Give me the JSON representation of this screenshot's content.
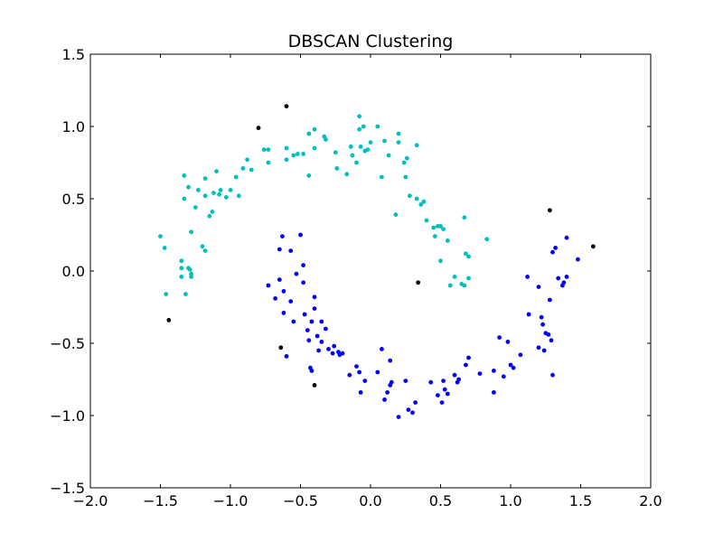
{
  "chart_data": {
    "type": "scatter",
    "title": "DBSCAN Clustering",
    "xlabel": "",
    "ylabel": "",
    "xlim": [
      -2.0,
      2.0
    ],
    "ylim": [
      -1.5,
      1.5
    ],
    "grid": false,
    "legend": "none",
    "x_ticks": [
      "−2.0",
      "−1.5",
      "−1.0",
      "−0.5",
      "0.0",
      "0.5",
      "1.0",
      "1.5",
      "2.0"
    ],
    "x_tick_values": [
      -2.0,
      -1.5,
      -1.0,
      -0.5,
      0.0,
      0.5,
      1.0,
      1.5,
      2.0
    ],
    "y_ticks": [
      "1.5",
      "1.0",
      "0.5",
      "0.0",
      "−0.5",
      "−1.0",
      "−1.5"
    ],
    "y_tick_values": [
      1.5,
      1.0,
      0.5,
      0.0,
      -0.5,
      -1.0,
      -1.5
    ],
    "series": [
      {
        "color": "#00bfbf",
        "points": [
          [
            -1.5,
            0.24
          ],
          [
            -1.47,
            0.16
          ],
          [
            -1.46,
            -0.16
          ],
          [
            -1.35,
            0.07
          ],
          [
            -1.35,
            0.02
          ],
          [
            -1.35,
            -0.04
          ],
          [
            -1.32,
            -0.16
          ],
          [
            -1.3,
            0.02
          ],
          [
            -1.29,
            0.01
          ],
          [
            -1.28,
            -0.02
          ],
          [
            -1.28,
            -0.04
          ],
          [
            -1.33,
            0.66
          ],
          [
            -1.33,
            0.5
          ],
          [
            -1.3,
            0.58
          ],
          [
            -1.28,
            0.27
          ],
          [
            -1.25,
            0.44
          ],
          [
            -1.23,
            0.56
          ],
          [
            -1.2,
            0.17
          ],
          [
            -1.18,
            0.14
          ],
          [
            -1.18,
            0.52
          ],
          [
            -1.18,
            0.64
          ],
          [
            -1.15,
            0.38
          ],
          [
            -1.13,
            0.41
          ],
          [
            -1.12,
            0.54
          ],
          [
            -1.1,
            0.69
          ],
          [
            -1.08,
            0.53
          ],
          [
            -1.07,
            0.56
          ],
          [
            -1.03,
            0.51
          ],
          [
            -1.0,
            0.56
          ],
          [
            -0.96,
            0.65
          ],
          [
            -0.94,
            0.52
          ],
          [
            -0.91,
            0.71
          ],
          [
            -0.88,
            0.77
          ],
          [
            -0.85,
            0.7
          ],
          [
            -0.76,
            0.84
          ],
          [
            -0.73,
            0.84
          ],
          [
            -0.73,
            0.75
          ],
          [
            -0.6,
            0.85
          ],
          [
            -0.6,
            0.77
          ],
          [
            -0.55,
            0.8
          ],
          [
            -0.52,
            0.81
          ],
          [
            -0.48,
            0.81
          ],
          [
            -0.44,
            0.95
          ],
          [
            -0.44,
            0.66
          ],
          [
            -0.4,
            0.98
          ],
          [
            -0.4,
            0.85
          ],
          [
            -0.33,
            0.93
          ],
          [
            -0.32,
            0.91
          ],
          [
            -0.25,
            0.82
          ],
          [
            -0.24,
            0.71
          ],
          [
            -0.17,
            0.67
          ],
          [
            -0.14,
            0.86
          ],
          [
            -0.13,
            0.8
          ],
          [
            -0.1,
            0.75
          ],
          [
            -0.08,
            0.98
          ],
          [
            -0.08,
            1.07
          ],
          [
            -0.07,
            0.86
          ],
          [
            -0.05,
            1.0
          ],
          [
            -0.04,
            0.83
          ],
          [
            -0.02,
            0.84
          ],
          [
            0.0,
            0.89
          ],
          [
            0.05,
            1.0
          ],
          [
            0.08,
            0.65
          ],
          [
            0.1,
            0.9
          ],
          [
            0.13,
            0.8
          ],
          [
            0.18,
            0.39
          ],
          [
            0.2,
            0.95
          ],
          [
            0.2,
            0.89
          ],
          [
            0.24,
            0.75
          ],
          [
            0.25,
            0.65
          ],
          [
            0.26,
            0.78
          ],
          [
            0.28,
            0.52
          ],
          [
            0.33,
            0.87
          ],
          [
            0.33,
            0.5
          ],
          [
            0.36,
            0.46
          ],
          [
            0.38,
            0.48
          ],
          [
            0.4,
            0.35
          ],
          [
            0.45,
            0.3
          ],
          [
            0.46,
            0.24
          ],
          [
            0.48,
            0.31
          ],
          [
            0.5,
            0.31
          ],
          [
            0.5,
            0.07
          ],
          [
            0.52,
            0.29
          ],
          [
            0.55,
            0.21
          ],
          [
            0.57,
            -0.1
          ],
          [
            0.6,
            -0.04
          ],
          [
            0.65,
            -0.09
          ],
          [
            0.67,
            0.37
          ],
          [
            0.67,
            -0.1
          ],
          [
            0.68,
            0.12
          ],
          [
            0.7,
            0.1
          ],
          [
            0.7,
            -0.05
          ],
          [
            0.83,
            0.22
          ]
        ]
      },
      {
        "color": "#0000ff",
        "points": [
          [
            -0.73,
            -0.1
          ],
          [
            -0.68,
            -0.19
          ],
          [
            -0.65,
            0.15
          ],
          [
            -0.65,
            -0.06
          ],
          [
            -0.63,
            0.24
          ],
          [
            -0.62,
            -0.14
          ],
          [
            -0.62,
            -0.29
          ],
          [
            -0.6,
            -0.59
          ],
          [
            -0.57,
            0.14
          ],
          [
            -0.57,
            -0.21
          ],
          [
            -0.55,
            -0.35
          ],
          [
            -0.53,
            -0.02
          ],
          [
            -0.5,
            0.25
          ],
          [
            -0.48,
            0.04
          ],
          [
            -0.48,
            -0.08
          ],
          [
            -0.47,
            -0.3
          ],
          [
            -0.45,
            -0.41
          ],
          [
            -0.44,
            -0.48
          ],
          [
            -0.43,
            -0.67
          ],
          [
            -0.42,
            -0.69
          ],
          [
            -0.42,
            -0.35
          ],
          [
            -0.4,
            -0.18
          ],
          [
            -0.4,
            -0.26
          ],
          [
            -0.38,
            -0.45
          ],
          [
            -0.37,
            -0.55
          ],
          [
            -0.35,
            -0.35
          ],
          [
            -0.35,
            -0.49
          ],
          [
            -0.32,
            -0.4
          ],
          [
            -0.3,
            -0.54
          ],
          [
            -0.27,
            -0.57
          ],
          [
            -0.26,
            -0.52
          ],
          [
            -0.23,
            -0.56
          ],
          [
            -0.22,
            -0.58
          ],
          [
            -0.2,
            -0.57
          ],
          [
            -0.15,
            -0.72
          ],
          [
            -0.1,
            -0.66
          ],
          [
            -0.08,
            -0.7
          ],
          [
            -0.07,
            -0.84
          ],
          [
            -0.04,
            -0.76
          ],
          [
            0.05,
            -0.7
          ],
          [
            0.08,
            -0.54
          ],
          [
            0.1,
            -0.89
          ],
          [
            0.12,
            -0.84
          ],
          [
            0.14,
            -0.62
          ],
          [
            0.14,
            -0.79
          ],
          [
            0.15,
            -0.77
          ],
          [
            0.2,
            -1.01
          ],
          [
            0.25,
            -0.76
          ],
          [
            0.27,
            -0.96
          ],
          [
            0.3,
            -0.98
          ],
          [
            0.32,
            -0.91
          ],
          [
            0.43,
            -0.77
          ],
          [
            0.48,
            -0.86
          ],
          [
            0.51,
            -0.91
          ],
          [
            0.52,
            -0.76
          ],
          [
            0.53,
            -0.82
          ],
          [
            0.55,
            -0.85
          ],
          [
            0.6,
            -0.72
          ],
          [
            0.62,
            -0.77
          ],
          [
            0.63,
            -0.75
          ],
          [
            0.68,
            -0.65
          ],
          [
            0.7,
            -0.6
          ],
          [
            0.78,
            -0.71
          ],
          [
            0.88,
            -0.84
          ],
          [
            0.88,
            -0.69
          ],
          [
            0.92,
            -0.46
          ],
          [
            0.95,
            -0.73
          ],
          [
            0.98,
            -0.49
          ],
          [
            1.0,
            -0.65
          ],
          [
            1.02,
            -0.67
          ],
          [
            1.07,
            -0.58
          ],
          [
            1.12,
            -0.04
          ],
          [
            1.13,
            -0.3
          ],
          [
            1.2,
            -0.53
          ],
          [
            1.2,
            -0.11
          ],
          [
            1.22,
            -0.32
          ],
          [
            1.23,
            -0.37
          ],
          [
            1.24,
            -0.55
          ],
          [
            1.25,
            -0.43
          ],
          [
            1.27,
            -0.44
          ],
          [
            1.28,
            -0.2
          ],
          [
            1.29,
            -0.48
          ],
          [
            1.3,
            -0.72
          ],
          [
            1.3,
            0.13
          ],
          [
            1.32,
            0.16
          ],
          [
            1.34,
            -0.05
          ],
          [
            1.37,
            -0.1
          ],
          [
            1.38,
            -0.08
          ],
          [
            1.4,
            -0.04
          ],
          [
            1.4,
            0.23
          ],
          [
            1.48,
            0.08
          ]
        ]
      },
      {
        "color": "#000000",
        "points": [
          [
            -1.44,
            -0.34
          ],
          [
            -0.8,
            0.99
          ],
          [
            -0.64,
            -0.53
          ],
          [
            -0.6,
            1.14
          ],
          [
            -0.4,
            -0.79
          ],
          [
            0.34,
            -0.08
          ],
          [
            1.28,
            0.42
          ],
          [
            1.59,
            0.17
          ]
        ]
      }
    ]
  }
}
